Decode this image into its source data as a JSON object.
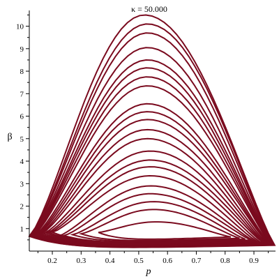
{
  "chart_data": {
    "type": "line",
    "title": "κ = 50.000",
    "xlabel": "p",
    "ylabel": "β",
    "xlim": [
      0.12,
      0.975
    ],
    "ylim": [
      0.0,
      10.7
    ],
    "x_ticks": [
      0.2,
      0.3,
      0.4,
      0.5,
      0.6,
      0.7,
      0.8,
      0.9
    ],
    "y_ticks": [
      1,
      2,
      3,
      4,
      5,
      6,
      7,
      8,
      9,
      10
    ],
    "x_minor_step": 0.05,
    "y_minor_step": 0.5,
    "grid": false,
    "color": "#7a0a1e",
    "orbit_family": {
      "description_of_shape": "nested closed orbits",
      "center_p": 0.6,
      "center_beta": 0.85,
      "orbits": [
        {
          "peak_p": 0.56,
          "peak_beta": 1.3,
          "left_p": 0.36,
          "right_p": 0.82,
          "bottom_beta": 0.48
        },
        {
          "peak_p": 0.55,
          "peak_beta": 1.85,
          "left_p": 0.3,
          "right_p": 0.85,
          "bottom_beta": 0.42
        },
        {
          "peak_p": 0.55,
          "peak_beta": 2.2,
          "left_p": 0.27,
          "right_p": 0.87,
          "bottom_beta": 0.38
        },
        {
          "peak_p": 0.54,
          "peak_beta": 2.55,
          "left_p": 0.24,
          "right_p": 0.89,
          "bottom_beta": 0.34
        },
        {
          "peak_p": 0.54,
          "peak_beta": 2.9,
          "left_p": 0.22,
          "right_p": 0.9,
          "bottom_beta": 0.31
        },
        {
          "peak_p": 0.54,
          "peak_beta": 3.35,
          "left_p": 0.2,
          "right_p": 0.91,
          "bottom_beta": 0.29
        },
        {
          "peak_p": 0.54,
          "peak_beta": 3.75,
          "left_p": 0.19,
          "right_p": 0.92,
          "bottom_beta": 0.27
        },
        {
          "peak_p": 0.54,
          "peak_beta": 4.05,
          "left_p": 0.18,
          "right_p": 0.93,
          "bottom_beta": 0.25
        },
        {
          "peak_p": 0.54,
          "peak_beta": 4.45,
          "left_p": 0.17,
          "right_p": 0.935,
          "bottom_beta": 0.23
        },
        {
          "peak_p": 0.53,
          "peak_beta": 5.0,
          "left_p": 0.16,
          "right_p": 0.94,
          "bottom_beta": 0.21
        },
        {
          "peak_p": 0.53,
          "peak_beta": 5.4,
          "left_p": 0.155,
          "right_p": 0.945,
          "bottom_beta": 0.2
        },
        {
          "peak_p": 0.53,
          "peak_beta": 5.85,
          "left_p": 0.15,
          "right_p": 0.95,
          "bottom_beta": 0.19
        },
        {
          "peak_p": 0.53,
          "peak_beta": 6.2,
          "left_p": 0.145,
          "right_p": 0.952,
          "bottom_beta": 0.18
        },
        {
          "peak_p": 0.53,
          "peak_beta": 6.55,
          "left_p": 0.14,
          "right_p": 0.955,
          "bottom_beta": 0.17
        },
        {
          "peak_p": 0.53,
          "peak_beta": 7.35,
          "left_p": 0.135,
          "right_p": 0.958,
          "bottom_beta": 0.16
        },
        {
          "peak_p": 0.53,
          "peak_beta": 7.75,
          "left_p": 0.132,
          "right_p": 0.96,
          "bottom_beta": 0.15
        },
        {
          "peak_p": 0.53,
          "peak_beta": 8.15,
          "left_p": 0.13,
          "right_p": 0.962,
          "bottom_beta": 0.14
        },
        {
          "peak_p": 0.53,
          "peak_beta": 8.5,
          "left_p": 0.128,
          "right_p": 0.964,
          "bottom_beta": 0.13
        },
        {
          "peak_p": 0.53,
          "peak_beta": 9.05,
          "left_p": 0.126,
          "right_p": 0.966,
          "bottom_beta": 0.125
        },
        {
          "peak_p": 0.53,
          "peak_beta": 9.7,
          "left_p": 0.124,
          "right_p": 0.968,
          "bottom_beta": 0.12
        },
        {
          "peak_p": 0.53,
          "peak_beta": 10.1,
          "left_p": 0.122,
          "right_p": 0.97,
          "bottom_beta": 0.115
        },
        {
          "peak_p": 0.52,
          "peak_beta": 10.5,
          "left_p": 0.12,
          "right_p": 0.972,
          "bottom_beta": 0.11
        }
      ]
    }
  }
}
